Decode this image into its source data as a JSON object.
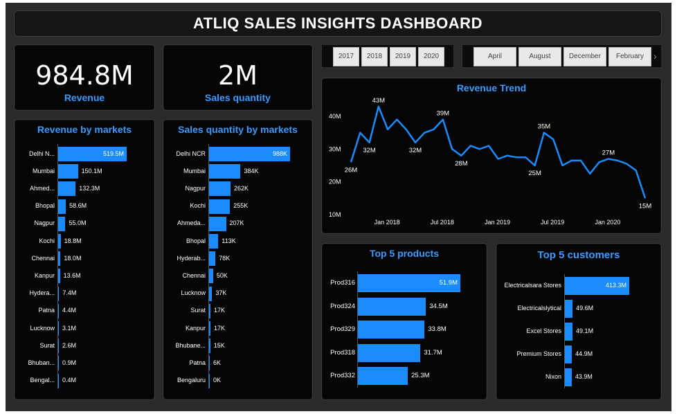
{
  "title": "ATLIQ SALES INSIGHTS DASHBOARD",
  "kpis": {
    "revenue": {
      "value": "984.8M",
      "label": "Revenue"
    },
    "quantity": {
      "value": "2M",
      "label": "Sales quantity"
    }
  },
  "year_slicer": [
    "2017",
    "2018",
    "2019",
    "2020"
  ],
  "month_slicer": [
    "April",
    "August",
    "December",
    "February"
  ],
  "slicer_next_icon": "chevron-right-icon",
  "colors": {
    "accent": "#1a8cff",
    "title_blue": "#3b9bff",
    "panel": "#050505",
    "background": "#2a2a2a"
  },
  "revenue_by_markets": {
    "title": "Revenue by markets",
    "items": [
      {
        "label": "Delhi N...",
        "value": 519.5,
        "display": "519.5M"
      },
      {
        "label": "Mumbai",
        "value": 150.1,
        "display": "150.1M"
      },
      {
        "label": "Ahmed...",
        "value": 132.3,
        "display": "132.3M"
      },
      {
        "label": "Bhopal",
        "value": 58.6,
        "display": "58.6M"
      },
      {
        "label": "Nagpur",
        "value": 55.0,
        "display": "55.0M"
      },
      {
        "label": "Kochi",
        "value": 18.8,
        "display": "18.8M"
      },
      {
        "label": "Chennai",
        "value": 18.0,
        "display": "18.0M"
      },
      {
        "label": "Kanpur",
        "value": 13.6,
        "display": "13.6M"
      },
      {
        "label": "Hydera...",
        "value": 7.4,
        "display": "7.4M"
      },
      {
        "label": "Patna",
        "value": 4.4,
        "display": "4.4M"
      },
      {
        "label": "Lucknow",
        "value": 3.1,
        "display": "3.1M"
      },
      {
        "label": "Surat",
        "value": 2.6,
        "display": "2.6M"
      },
      {
        "label": "Bhuban...",
        "value": 0.9,
        "display": "0.9M"
      },
      {
        "label": "Bengal...",
        "value": 0.4,
        "display": "0.4M"
      }
    ]
  },
  "quantity_by_markets": {
    "title": "Sales quantity by markets",
    "items": [
      {
        "label": "Delhi NCR",
        "value": 988,
        "display": "988K"
      },
      {
        "label": "Mumbai",
        "value": 384,
        "display": "384K"
      },
      {
        "label": "Nagpur",
        "value": 262,
        "display": "262K"
      },
      {
        "label": "Kochi",
        "value": 255,
        "display": "255K"
      },
      {
        "label": "Ahmeda...",
        "value": 207,
        "display": "207K"
      },
      {
        "label": "Bhopal",
        "value": 113,
        "display": "113K"
      },
      {
        "label": "Hyderab...",
        "value": 78,
        "display": "78K"
      },
      {
        "label": "Chennai",
        "value": 50,
        "display": "50K"
      },
      {
        "label": "Lucknow",
        "value": 37,
        "display": "37K"
      },
      {
        "label": "Surat",
        "value": 17,
        "display": "17K"
      },
      {
        "label": "Kanpur",
        "value": 17,
        "display": "17K"
      },
      {
        "label": "Bhubane...",
        "value": 15,
        "display": "15K"
      },
      {
        "label": "Patna",
        "value": 6,
        "display": "6K"
      },
      {
        "label": "Bengaluru",
        "value": 0,
        "display": "0K"
      }
    ]
  },
  "top_products": {
    "title": "Top 5 products",
    "items": [
      {
        "label": "Prod316",
        "value": 51.9,
        "display": "51.9M"
      },
      {
        "label": "Prod324",
        "value": 34.5,
        "display": "34.5M"
      },
      {
        "label": "Prod329",
        "value": 33.8,
        "display": "33.8M"
      },
      {
        "label": "Prod318",
        "value": 31.7,
        "display": "31.7M"
      },
      {
        "label": "Prod332",
        "value": 25.3,
        "display": "25.3M"
      }
    ]
  },
  "top_customers": {
    "title": "Top 5 customers",
    "items": [
      {
        "label": "Electricalsara Stores",
        "value": 413.3,
        "display": "413.3M"
      },
      {
        "label": "Electricalslytical",
        "value": 49.6,
        "display": "49.6M"
      },
      {
        "label": "Excel Stores",
        "value": 49.1,
        "display": "49.1M"
      },
      {
        "label": "Premium Stores",
        "value": 44.9,
        "display": "44.9M"
      },
      {
        "label": "Nixon",
        "value": 43.9,
        "display": "43.9M"
      }
    ]
  },
  "chart_data": {
    "type": "line",
    "title": "Revenue Trend",
    "x_tick_labels": [
      "Jan 2018",
      "Jul 2018",
      "Jan 2019",
      "Jul 2019",
      "Jan 2020"
    ],
    "y_tick_labels": [
      "10M",
      "20M",
      "30M",
      "40M"
    ],
    "yticks": [
      10,
      20,
      30,
      40
    ],
    "ylim": [
      10,
      44
    ],
    "grid": false,
    "series": [
      {
        "values": [
          26,
          35,
          32,
          43,
          36,
          39,
          36,
          32,
          35,
          36,
          39,
          30,
          28,
          31,
          30,
          31,
          27,
          28,
          27.5,
          27.5,
          25,
          35,
          33,
          25,
          26.5,
          26.5,
          22.5,
          26,
          27,
          26.5,
          25.5,
          23.5,
          15
        ],
        "point_labels": [
          {
            "index": 0,
            "text": "26M"
          },
          {
            "index": 2,
            "text": "32M"
          },
          {
            "index": 3,
            "text": "43M"
          },
          {
            "index": 7,
            "text": "32M"
          },
          {
            "index": 10,
            "text": "39M"
          },
          {
            "index": 12,
            "text": "28M"
          },
          {
            "index": 20,
            "text": "25M"
          },
          {
            "index": 21,
            "text": "35M"
          },
          {
            "index": 28,
            "text": "27M"
          },
          {
            "index": 32,
            "text": "15M"
          }
        ]
      }
    ]
  }
}
